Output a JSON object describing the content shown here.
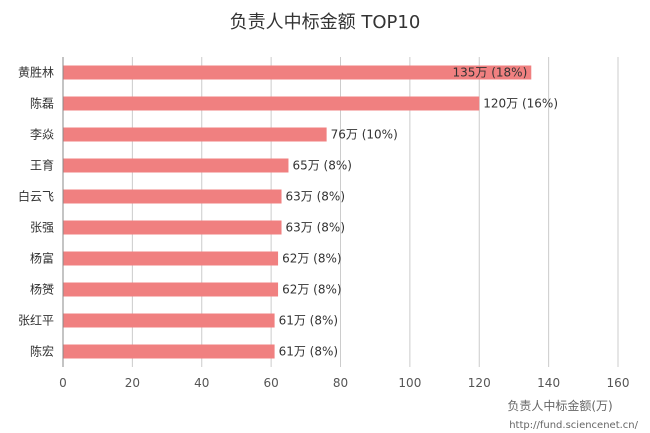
{
  "chart_data": {
    "type": "bar",
    "orientation": "horizontal",
    "title": "负责人中标金额 TOP10",
    "xlabel": "负责人中标金额(万)",
    "ylabel": "",
    "xlim": [
      0,
      160
    ],
    "x_ticks": [
      0,
      20,
      40,
      60,
      80,
      100,
      120,
      140,
      160
    ],
    "grid": true,
    "bar_color": "#f08080",
    "categories": [
      "黄胜林",
      "陈磊",
      "李焱",
      "王育",
      "白云飞",
      "张强",
      "杨富",
      "杨赟",
      "张红平",
      "陈宏"
    ],
    "values": [
      135,
      120,
      76,
      65,
      63,
      63,
      62,
      62,
      61,
      61
    ],
    "data_labels": [
      "135万 (18%)",
      "120万 (16%)",
      "76万 (10%)",
      "65万 (8%)",
      "63万 (8%)",
      "63万 (8%)",
      "62万 (8%)",
      "62万 (8%)",
      "61万 (8%)",
      "61万 (8%)"
    ]
  },
  "source_text": "http://fund.sciencenet.cn/"
}
